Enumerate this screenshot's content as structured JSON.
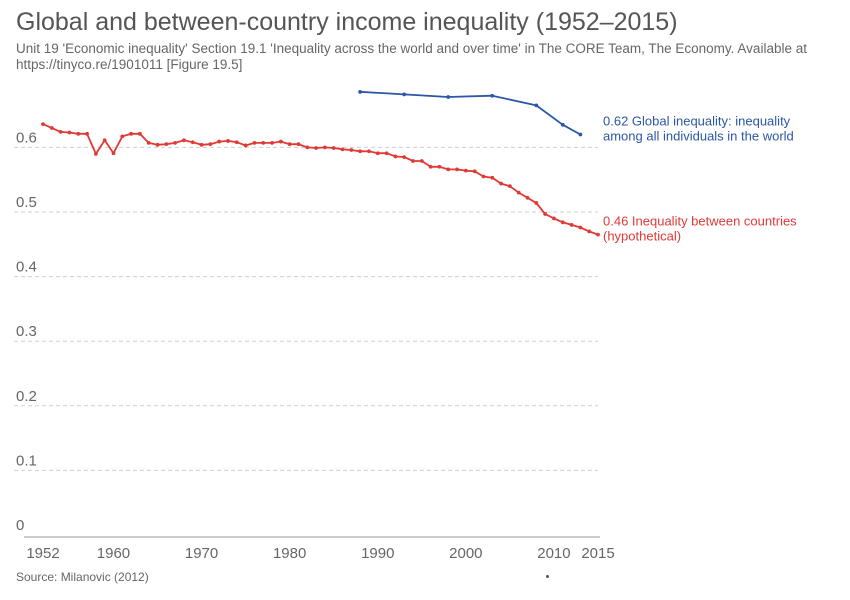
{
  "title": "Global and between-country income inequality (1952–2015)",
  "subtitle": "Unit 19 'Economic inequality' Section 19.1 'Inequality across the world and over time' in The CORE Team, The Economy. Available at https://tinyco.re/1901011 [Figure 19.5]",
  "source": "Source: Milanovic (2012)",
  "chart_data": {
    "type": "line",
    "title": "Global and between-country income inequality (1952–2015)",
    "xlabel": "",
    "ylabel": "",
    "xlim": [
      1952,
      2015
    ],
    "ylim": [
      0,
      0.7
    ],
    "x_ticks": [
      1952,
      1960,
      1970,
      1980,
      1990,
      2000,
      2010,
      2015
    ],
    "y_ticks": [
      0,
      0.1,
      0.2,
      0.3,
      0.4,
      0.5,
      0.6
    ],
    "grid": "horizontal dashed",
    "series": [
      {
        "name": "Global inequality: inequality among all individuals in the world",
        "end_label": [
          "0.62 Global inequality: inequality",
          "among all individuals in the world"
        ],
        "color": "#2c56a6",
        "x": [
          1988,
          1993,
          1998,
          2003,
          2008,
          2011,
          2013
        ],
        "y": [
          0.686,
          0.682,
          0.678,
          0.68,
          0.665,
          0.635,
          0.62
        ]
      },
      {
        "name": "Inequality between countries (hypothetical)",
        "end_label": [
          "0.46 Inequality between countries",
          "(hypothetical)"
        ],
        "color": "#e03a36",
        "x": [
          1952,
          1953,
          1954,
          1955,
          1956,
          1957,
          1958,
          1959,
          1960,
          1961,
          1962,
          1963,
          1964,
          1965,
          1966,
          1967,
          1968,
          1969,
          1970,
          1971,
          1972,
          1973,
          1974,
          1975,
          1976,
          1977,
          1978,
          1979,
          1980,
          1981,
          1982,
          1983,
          1984,
          1985,
          1986,
          1987,
          1988,
          1989,
          1990,
          1991,
          1992,
          1993,
          1994,
          1995,
          1996,
          1997,
          1998,
          1999,
          2000,
          2001,
          2002,
          2003,
          2004,
          2005,
          2006,
          2007,
          2008,
          2009,
          2010,
          2011,
          2012,
          2013,
          2014,
          2015
        ],
        "y": [
          0.636,
          0.63,
          0.624,
          0.623,
          0.621,
          0.621,
          0.59,
          0.611,
          0.591,
          0.617,
          0.621,
          0.621,
          0.607,
          0.604,
          0.605,
          0.607,
          0.611,
          0.608,
          0.604,
          0.605,
          0.609,
          0.61,
          0.608,
          0.603,
          0.607,
          0.607,
          0.607,
          0.609,
          0.605,
          0.605,
          0.6,
          0.599,
          0.6,
          0.599,
          0.597,
          0.596,
          0.594,
          0.594,
          0.591,
          0.591,
          0.586,
          0.585,
          0.579,
          0.579,
          0.57,
          0.57,
          0.566,
          0.566,
          0.564,
          0.563,
          0.555,
          0.553,
          0.544,
          0.54,
          0.53,
          0.522,
          0.514,
          0.497,
          0.49,
          0.484,
          0.48,
          0.476,
          0.47,
          0.465
        ]
      }
    ]
  }
}
